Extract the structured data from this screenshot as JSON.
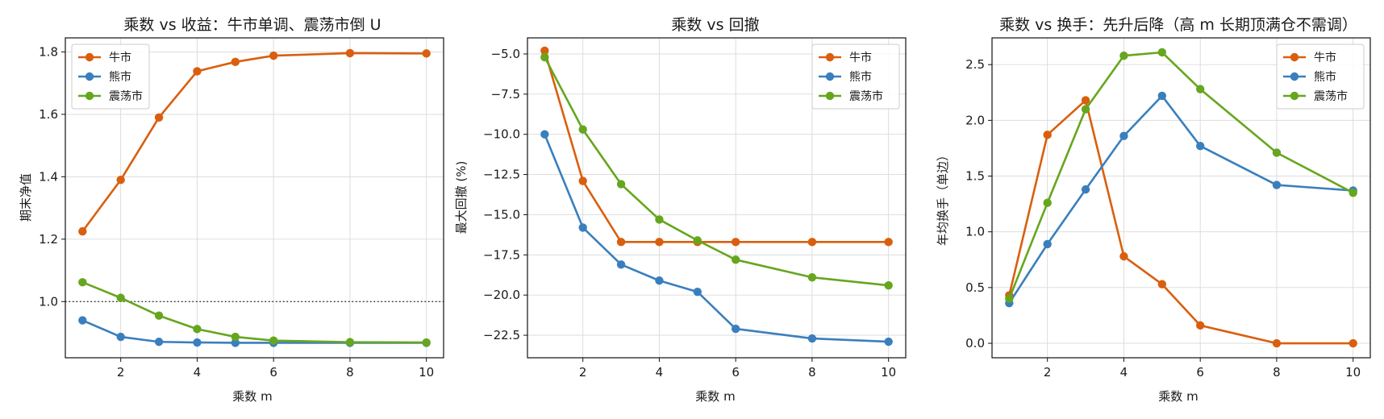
{
  "colors": {
    "bull": "#d95f0e",
    "bear": "#3a7fbd",
    "range": "#66a61e"
  },
  "chart_data": [
    {
      "type": "line",
      "title": "乘数 vs 收益：牛市单调、震荡市倒 U",
      "xlabel": "乘数 m",
      "ylabel": "期末净值",
      "x": [
        1,
        2,
        3,
        4,
        5,
        6,
        8,
        10
      ],
      "xlim": [
        0.55,
        10.45
      ],
      "ylim": [
        0.82,
        1.845
      ],
      "xticks": [
        2,
        4,
        6,
        8,
        10
      ],
      "yticks": [
        1.0,
        1.2,
        1.4,
        1.6,
        1.8
      ],
      "ytick_labels": [
        "1.0",
        "1.2",
        "1.4",
        "1.6",
        "1.8"
      ],
      "reference_line": {
        "y": 1.0,
        "style": "dotted"
      },
      "grid": true,
      "legend": "upper-left",
      "series": [
        {
          "name": "牛市",
          "color_key": "bull",
          "values": [
            1.225,
            1.39,
            1.59,
            1.738,
            1.768,
            1.788,
            1.796,
            1.795
          ]
        },
        {
          "name": "熊市",
          "color_key": "bear",
          "values": [
            0.94,
            0.887,
            0.871,
            0.869,
            0.868,
            0.868,
            0.868,
            0.868
          ]
        },
        {
          "name": "震荡市",
          "color_key": "range",
          "values": [
            1.062,
            1.012,
            0.955,
            0.912,
            0.887,
            0.875,
            0.87,
            0.869
          ]
        }
      ]
    },
    {
      "type": "line",
      "title": "乘数 vs 回撤",
      "xlabel": "乘数 m",
      "ylabel": "最大回撤 (%)",
      "x": [
        1,
        2,
        3,
        4,
        5,
        6,
        8,
        10
      ],
      "xlim": [
        0.55,
        10.45
      ],
      "ylim": [
        -23.9,
        -4.0
      ],
      "xticks": [
        2,
        4,
        6,
        8,
        10
      ],
      "yticks": [
        -5.0,
        -7.5,
        -10.0,
        -12.5,
        -15.0,
        -17.5,
        -20.0,
        -22.5
      ],
      "ytick_labels": [
        "−5.0",
        "−7.5",
        "−10.0",
        "−12.5",
        "−15.0",
        "−17.5",
        "−20.0",
        "−22.5"
      ],
      "grid": true,
      "legend": "upper-right",
      "series": [
        {
          "name": "牛市",
          "color_key": "bull",
          "values": [
            -4.8,
            -12.9,
            -16.7,
            -16.7,
            -16.7,
            -16.7,
            -16.7,
            -16.7
          ]
        },
        {
          "name": "熊市",
          "color_key": "bear",
          "values": [
            -10.0,
            -15.8,
            -18.1,
            -19.1,
            -19.8,
            -22.1,
            -22.7,
            -22.9
          ]
        },
        {
          "name": "震荡市",
          "color_key": "range",
          "values": [
            -5.2,
            -9.7,
            -13.1,
            -15.3,
            -16.6,
            -17.8,
            -18.9,
            -19.4
          ]
        }
      ]
    },
    {
      "type": "line",
      "title": "乘数 vs 换手：先升后降（高 m 长期顶满仓不需调）",
      "xlabel": "乘数 m",
      "ylabel": "年均换手（单边）",
      "x": [
        1,
        2,
        3,
        4,
        5,
        6,
        8,
        10
      ],
      "xlim": [
        0.55,
        10.45
      ],
      "ylim": [
        -0.13,
        2.74
      ],
      "xticks": [
        2,
        4,
        6,
        8,
        10
      ],
      "yticks": [
        0.0,
        0.5,
        1.0,
        1.5,
        2.0,
        2.5
      ],
      "ytick_labels": [
        "0.0",
        "0.5",
        "1.0",
        "1.5",
        "2.0",
        "2.5"
      ],
      "grid": true,
      "legend": "upper-right",
      "series": [
        {
          "name": "牛市",
          "color_key": "bull",
          "values": [
            0.43,
            1.87,
            2.18,
            0.78,
            0.53,
            0.16,
            0.0,
            0.0
          ]
        },
        {
          "name": "熊市",
          "color_key": "bear",
          "values": [
            0.36,
            0.89,
            1.38,
            1.86,
            2.22,
            1.77,
            1.42,
            1.37
          ]
        },
        {
          "name": "震荡市",
          "color_key": "range",
          "values": [
            0.4,
            1.26,
            2.1,
            2.58,
            2.61,
            2.28,
            1.71,
            1.35
          ]
        }
      ]
    }
  ]
}
